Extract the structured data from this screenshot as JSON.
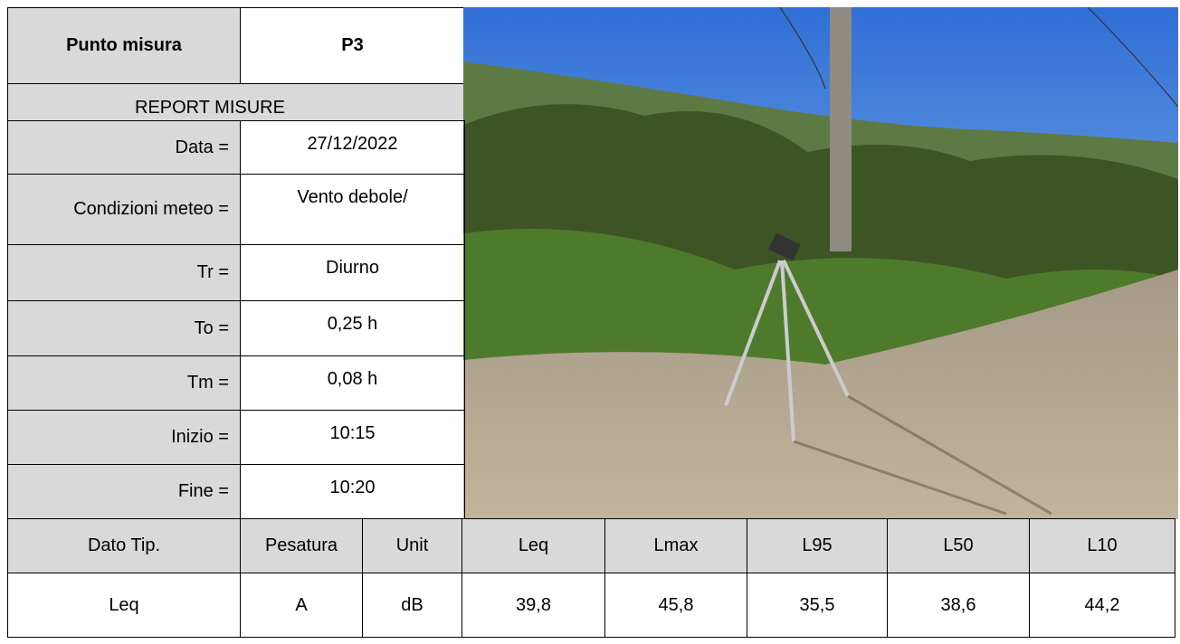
{
  "header": {
    "label": "Punto misura",
    "value": "P3"
  },
  "report_title": "REPORT MISURE",
  "fields": [
    {
      "label": "Data =",
      "value": "27/12/2022"
    },
    {
      "label": "Condizioni meteo =",
      "value": "Vento debole/"
    },
    {
      "label": "Tr =",
      "value": "Diurno"
    },
    {
      "label": "To =",
      "value": "0,25 h"
    },
    {
      "label": "Tm =",
      "value": "0,08 h"
    },
    {
      "label": "Inizio =",
      "value": "10:15"
    },
    {
      "label": "Fine =",
      "value": "10:20"
    }
  ],
  "results": {
    "columns": [
      "Dato Tip.",
      "Pesatura",
      "Unit",
      "Leq",
      "Lmax",
      "L95",
      "L50",
      "L10"
    ],
    "rows": [
      [
        "Leq",
        "A",
        "dB",
        "39,8",
        "45,8",
        "35,5",
        "38,6",
        "44,2"
      ]
    ]
  }
}
